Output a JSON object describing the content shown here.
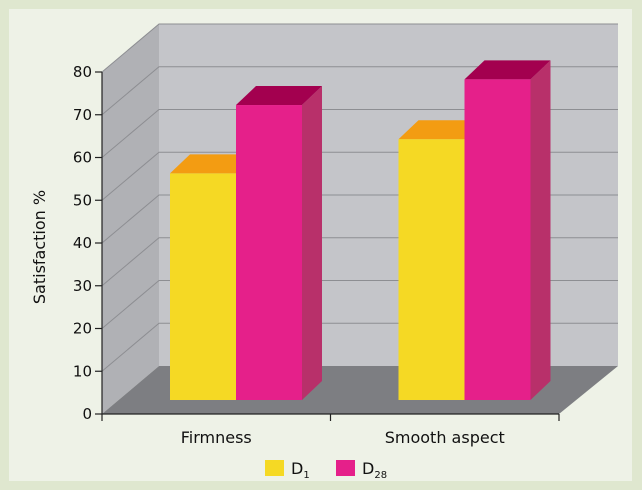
{
  "chart_data": {
    "type": "bar",
    "categories": [
      "Firmness",
      "Smooth aspect"
    ],
    "series": [
      {
        "name": "D",
        "name_subscript": "1",
        "values": [
          53,
          61
        ],
        "color": "#f5d924",
        "top_color": "#f39c12",
        "side_color": "#e5c400"
      },
      {
        "name": "D",
        "name_subscript": "28",
        "values": [
          69,
          75
        ],
        "color": "#e5208a",
        "top_color": "#a3004f",
        "side_color": "#b8306a"
      }
    ],
    "ylabel": "Satisfaction %",
    "xlabel": "",
    "ylim": [
      0,
      80
    ],
    "yticks": [
      0,
      10,
      20,
      30,
      40,
      50,
      60,
      70,
      80
    ],
    "grid": true,
    "legend": "bottom-center",
    "three_d": true,
    "colors": {
      "back_wall": "#c4c5c9",
      "side_wall": "#b0b1b5",
      "floor": "#7d7e82",
      "grid": "#8d8e92"
    }
  }
}
